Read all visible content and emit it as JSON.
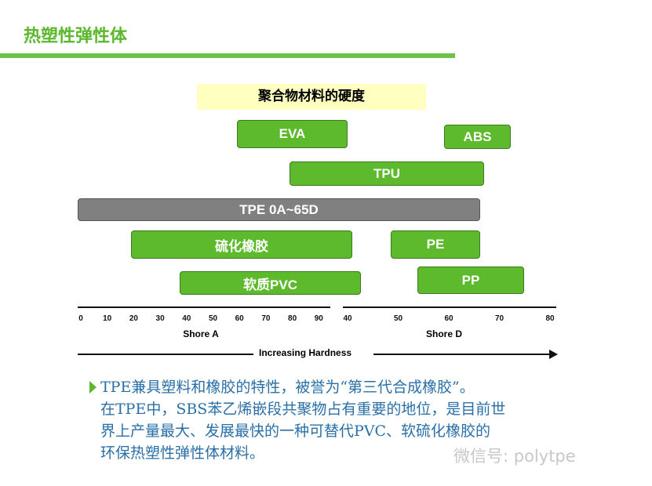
{
  "slide_title": "热塑性弹性体",
  "diagram": {
    "title": "聚合物材料的硬度",
    "bars": [
      "EVA",
      "ABS",
      "TPU",
      "TPE 0A~65D",
      "硫化橡胶",
      "PE",
      "软质PVC",
      "PP"
    ],
    "shore_a_ticks": [
      "0",
      "10",
      "20",
      "30",
      "40",
      "50",
      "60",
      "70",
      "80",
      "90"
    ],
    "shore_d_ticks": [
      "40",
      "50",
      "60",
      "70",
      "80"
    ],
    "shore_a_label": "Shore A",
    "shore_d_label": "Shore D",
    "arrow_label": "Increasing Hardness",
    "colors": {
      "bar": "#5cba2c",
      "tpe_bar": "#808080",
      "title_bg": "#ffffc0"
    }
  },
  "body_lines": [
    "TPE兼具塑料和橡胶的特性，被誉为“第三代合成橡胶”。",
    "在TPE中，SBS苯乙烯嵌段共聚物占有重要的地位，是目前世",
    "界上产量最大、发展最快的一种可替代PVC、软硫化橡胶的",
    "环保热塑性弹性体材料。"
  ],
  "watermark": "微信号: polytpe"
}
